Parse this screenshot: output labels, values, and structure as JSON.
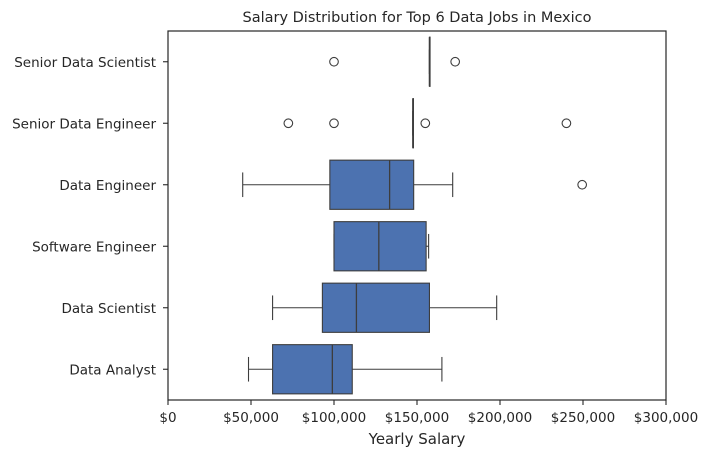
{
  "chart_data": {
    "type": "boxplot",
    "title": "Salary Distribution for Top 6 Data Jobs in Mexico",
    "xlabel": "Yearly Salary",
    "ylabel": "",
    "xlim": [
      0,
      300000
    ],
    "x_ticks": [
      0,
      50000,
      100000,
      150000,
      200000,
      250000,
      300000
    ],
    "x_tick_labels": [
      "$0",
      "$50,000",
      "$100,000",
      "$150,000",
      "$200,000",
      "$250,000",
      "$300,000"
    ],
    "orientation": "horizontal",
    "grid": false,
    "box_color": "#4c72b0",
    "line_color": "#3d3d3d",
    "categories": [
      "Senior Data Scientist",
      "Senior Data Engineer",
      "Data Engineer",
      "Software Engineer",
      "Data Scientist",
      "Data Analyst"
    ],
    "boxes": [
      {
        "category": "Senior Data Scientist",
        "whisker_low": 157500,
        "q1": 157500,
        "median": 157500,
        "q3": 157500,
        "whisker_high": 157500,
        "outliers": [
          100000,
          173000
        ]
      },
      {
        "category": "Senior Data Engineer",
        "whisker_low": 147500,
        "q1": 147500,
        "median": 147500,
        "q3": 147500,
        "whisker_high": 147500,
        "outliers": [
          72500,
          100000,
          155000,
          240000
        ]
      },
      {
        "category": "Data Engineer",
        "whisker_low": 45000,
        "q1": 97500,
        "median": 133500,
        "q3": 148000,
        "whisker_high": 171500,
        "outliers": [
          249500
        ]
      },
      {
        "category": "Software Engineer",
        "whisker_low": 100000,
        "q1": 100000,
        "median": 127000,
        "q3": 155500,
        "whisker_high": 157000,
        "outliers": []
      },
      {
        "category": "Data Scientist",
        "whisker_low": 63000,
        "q1": 93000,
        "median": 113500,
        "q3": 157500,
        "whisker_high": 198000,
        "outliers": []
      },
      {
        "category": "Data Analyst",
        "whisker_low": 48500,
        "q1": 63000,
        "median": 99000,
        "q3": 111000,
        "whisker_high": 165000,
        "outliers": []
      }
    ]
  }
}
